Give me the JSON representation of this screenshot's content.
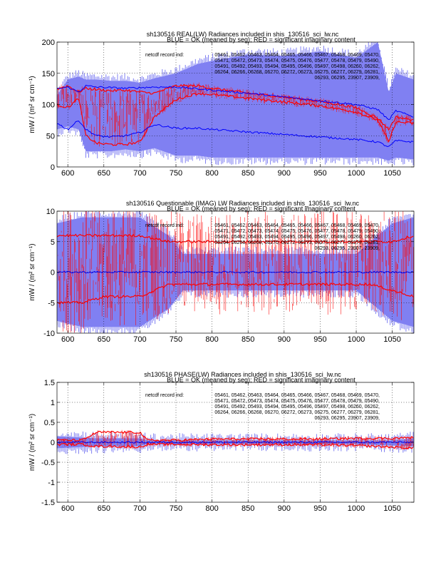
{
  "legend_line": "BLUE = OK (meaned by seg); RED = significant imaginary content",
  "record_label": "netcdf record ind:",
  "record_lines": [
    "05461, 05462, 05463, 05464, 05465, 05466, 05467, 05468, 05469, 05470,",
    "05471, 05472, 05473, 05474, 05475, 05476, 05477, 05478, 05479, 05490,",
    "05491, 05492, 05493, 05494, 05495, 05496, 05497, 05498, 06260, 06262,",
    "06264, 06266, 06268, 06270, 06272, 06273, 06275, 06277, 06279, 06281,",
    "06293, 06295, 23907, 23909,"
  ],
  "colors": {
    "blue": "#0000ff",
    "blue_fill": "#8080f2",
    "red": "#ff0000"
  },
  "chart_data": [
    {
      "type": "line",
      "title": "sh130516 REAL(LW) Radiances included in shis_130516_sci_lw.nc",
      "xlabel": "",
      "ylabel": "mW / (m² sr cm⁻¹)",
      "xlim": [
        585,
        1080
      ],
      "ylim": [
        0,
        200
      ],
      "xticks": [
        600,
        650,
        700,
        750,
        800,
        850,
        900,
        950,
        1000,
        1050
      ],
      "yticks": [
        0,
        50,
        100,
        150,
        200
      ],
      "grid": true,
      "x": [
        585,
        600,
        615,
        625,
        640,
        660,
        680,
        700,
        720,
        750,
        780,
        800,
        850,
        900,
        950,
        1000,
        1030,
        1045,
        1055,
        1080
      ],
      "series": [
        {
          "name": "blue band upper",
          "values": [
            115,
            140,
            145,
            140,
            140,
            138,
            138,
            135,
            142,
            150,
            165,
            170,
            180,
            178,
            185,
            175,
            200,
            120,
            150,
            140
          ]
        },
        {
          "name": "blue band lower",
          "values": [
            60,
            65,
            60,
            25,
            25,
            25,
            28,
            25,
            30,
            18,
            18,
            15,
            15,
            15,
            15,
            15,
            15,
            10,
            15,
            12
          ]
        },
        {
          "name": "blue mean upper",
          "values": [
            125,
            128,
            120,
            130,
            128,
            127,
            126,
            127,
            128,
            128,
            125,
            123,
            118,
            112,
            106,
            100,
            92,
            75,
            90,
            80
          ]
        },
        {
          "name": "blue mean lower",
          "values": [
            70,
            60,
            75,
            60,
            50,
            48,
            50,
            55,
            68,
            62,
            62,
            60,
            56,
            52,
            48,
            44,
            40,
            32,
            42,
            40
          ]
        },
        {
          "name": "red upper",
          "values": [
            125,
            130,
            120,
            126,
            124,
            122,
            123,
            120,
            118,
            130,
            130,
            126,
            118,
            112,
            105,
            95,
            78,
            60,
            80,
            75
          ]
        },
        {
          "name": "red lower",
          "values": [
            100,
            95,
            110,
            50,
            38,
            36,
            36,
            40,
            80,
            108,
            118,
            116,
            110,
            104,
            98,
            88,
            75,
            40,
            72,
            70
          ]
        }
      ]
    },
    {
      "type": "line",
      "title": "sh130516 Questionable (IMAG) LW Radiances included in shis_130516_sci_lw.nc",
      "xlabel": "",
      "ylabel": "mW / (m² sr cm⁻¹)",
      "xlim": [
        585,
        1080
      ],
      "ylim": [
        -10,
        10
      ],
      "xticks": [
        600,
        650,
        700,
        750,
        800,
        850,
        900,
        950,
        1000,
        1050
      ],
      "yticks": [
        -10,
        -5,
        0,
        5,
        10
      ],
      "grid": true,
      "x": [
        585,
        620,
        650,
        700,
        740,
        760,
        800,
        850,
        900,
        950,
        1000,
        1020,
        1050,
        1080
      ],
      "series": [
        {
          "name": "blue band upper",
          "values": [
            8,
            9,
            9,
            9,
            6,
            3,
            3,
            3,
            3,
            3,
            3,
            5,
            8,
            9
          ]
        },
        {
          "name": "blue band lower",
          "values": [
            -8,
            -9,
            -9,
            -9,
            -6,
            -3,
            -3,
            -3,
            -3,
            -3,
            -3,
            -5,
            -8,
            -9
          ]
        },
        {
          "name": "blue mean",
          "values": [
            0,
            0,
            0,
            0,
            0,
            0,
            0,
            0,
            0,
            0,
            0,
            0,
            0,
            0
          ]
        },
        {
          "name": "red upper",
          "values": [
            6,
            6,
            6,
            6,
            5,
            5,
            5,
            5,
            5,
            5,
            5,
            5,
            5,
            6
          ]
        },
        {
          "name": "red lower",
          "values": [
            -5,
            -5,
            -4,
            -4,
            -2,
            -2,
            -2,
            -2,
            -2,
            -2,
            -2,
            -2,
            -3,
            -4
          ]
        }
      ]
    },
    {
      "type": "line",
      "title": "sh130516 PHASE(LW) Radiances included in shis_130516_sci_lw.nc",
      "xlabel": "",
      "ylabel": "mW / (m² sr cm⁻¹)",
      "xlim": [
        585,
        1080
      ],
      "ylim": [
        -1.5,
        1.5
      ],
      "xticks": [
        600,
        650,
        700,
        750,
        800,
        850,
        900,
        950,
        1000,
        1050
      ],
      "yticks": [
        -1.5,
        -1,
        -0.5,
        0,
        0.5,
        1,
        1.5
      ],
      "grid": true,
      "x": [
        585,
        620,
        640,
        660,
        700,
        710,
        750,
        800,
        850,
        900,
        950,
        1000,
        1050,
        1080
      ],
      "series": [
        {
          "name": "blue band upper",
          "values": [
            0.15,
            0.12,
            0.1,
            0.1,
            0.1,
            0.05,
            0.05,
            0.05,
            0.05,
            0.05,
            0.05,
            0.05,
            0.05,
            0.1
          ]
        },
        {
          "name": "blue band lower",
          "values": [
            -0.15,
            -0.12,
            -0.1,
            -0.1,
            -0.1,
            -0.05,
            -0.05,
            -0.05,
            -0.05,
            -0.05,
            -0.05,
            -0.05,
            -0.08,
            -0.1
          ]
        },
        {
          "name": "red upper",
          "values": [
            0.05,
            0.05,
            0.25,
            0.25,
            0.25,
            0.05,
            0.05,
            0.08,
            0.08,
            0.08,
            0.08,
            0.1,
            0.1,
            0.12
          ]
        },
        {
          "name": "red lower",
          "values": [
            -0.05,
            -0.05,
            -0.1,
            -0.1,
            -0.12,
            -0.05,
            -0.05,
            -0.06,
            -0.06,
            -0.06,
            -0.06,
            -0.08,
            -0.12,
            -0.15
          ]
        },
        {
          "name": "blue mean",
          "values": [
            0,
            0,
            0,
            0,
            0,
            0,
            0,
            0,
            0,
            0,
            0,
            0,
            0,
            0
          ]
        }
      ]
    }
  ]
}
